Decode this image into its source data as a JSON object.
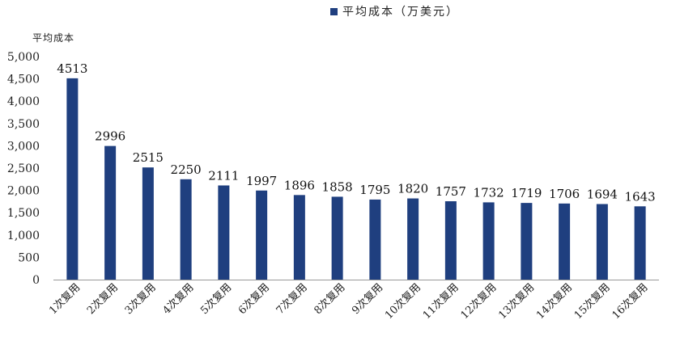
{
  "chart_data": {
    "type": "bar",
    "title": "",
    "xlabel": "",
    "ylabel": "平均成本",
    "ylim": [
      0,
      5000
    ],
    "y_ticks": [
      "0",
      "500",
      "1,000",
      "1,500",
      "2,000",
      "2,500",
      "3,000",
      "3,500",
      "4,000",
      "4,500",
      "5,000"
    ],
    "grid": false,
    "legend_position": "top",
    "bar_color": "#1f3f7f",
    "categories": [
      "1次复用",
      "2次复用",
      "3次复用",
      "4次复用",
      "5次复用",
      "6次复用",
      "7次复用",
      "8次复用",
      "9次复用",
      "10次复用",
      "11次复用",
      "12次复用",
      "13次复用",
      "14次复用",
      "15次复用",
      "16次复用"
    ],
    "series": [
      {
        "name": "平均成本（万美元）",
        "values": [
          4513,
          2996,
          2515,
          2250,
          2111,
          1997,
          1896,
          1858,
          1795,
          1820,
          1757,
          1732,
          1719,
          1706,
          1694,
          1643
        ]
      }
    ]
  }
}
